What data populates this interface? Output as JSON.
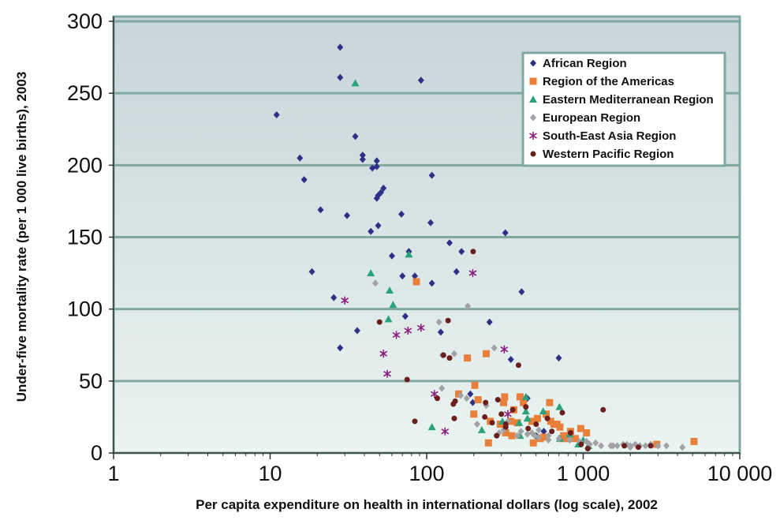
{
  "chart_data": {
    "type": "scatter",
    "xlabel": "Per capita expenditure on health in international dollars (log scale), 2002",
    "ylabel": "Under-five mortality rate (per 1 000 live births), 2003",
    "xscale": "log",
    "xlim": [
      1,
      10000
    ],
    "ylim": [
      0,
      300
    ],
    "x_ticks": [
      {
        "value": 1,
        "label": "1"
      },
      {
        "value": 10,
        "label": "10"
      },
      {
        "value": 100,
        "label": "100"
      },
      {
        "value": 1000,
        "label": "1 000"
      },
      {
        "value": 10000,
        "label": "10 000"
      }
    ],
    "y_ticks": [
      {
        "value": 0,
        "label": "0"
      },
      {
        "value": 50,
        "label": "50"
      },
      {
        "value": 100,
        "label": "100"
      },
      {
        "value": 150,
        "label": "150"
      },
      {
        "value": 200,
        "label": "200"
      },
      {
        "value": 250,
        "label": "250"
      },
      {
        "value": 300,
        "label": "300"
      }
    ],
    "grid": "horizontal",
    "legend_position": "top-right",
    "series": [
      {
        "name": "African Region",
        "color": "#2e2f86",
        "marker": "diamond",
        "points": [
          [
            28,
            282
          ],
          [
            28,
            261
          ],
          [
            92,
            259
          ],
          [
            11,
            235
          ],
          [
            35,
            220
          ],
          [
            39,
            207
          ],
          [
            39,
            204
          ],
          [
            15.5,
            205
          ],
          [
            48,
            203
          ],
          [
            48,
            199
          ],
          [
            45,
            198
          ],
          [
            108,
            193
          ],
          [
            16.5,
            190
          ],
          [
            53,
            184
          ],
          [
            51,
            181
          ],
          [
            49,
            179
          ],
          [
            48,
            177
          ],
          [
            21,
            169
          ],
          [
            31,
            165
          ],
          [
            69,
            166
          ],
          [
            106,
            160
          ],
          [
            49,
            158
          ],
          [
            44,
            154
          ],
          [
            318,
            153
          ],
          [
            140,
            146
          ],
          [
            167,
            140
          ],
          [
            60,
            137
          ],
          [
            77,
            140
          ],
          [
            18.5,
            126
          ],
          [
            155,
            126
          ],
          [
            70,
            123
          ],
          [
            84,
            123
          ],
          [
            108,
            118
          ],
          [
            404,
            112
          ],
          [
            25.5,
            108
          ],
          [
            73,
            95
          ],
          [
            252,
            91
          ],
          [
            36,
            85
          ],
          [
            123,
            84
          ],
          [
            345,
            65
          ],
          [
            698,
            66
          ],
          [
            28,
            73
          ],
          [
            190,
            41
          ],
          [
            197,
            35
          ],
          [
            440,
            38
          ],
          [
            560,
            15
          ],
          [
            500,
            12
          ]
        ]
      },
      {
        "name": "Region of the Americas",
        "color": "#e8803a",
        "marker": "square",
        "points": [
          [
            86,
            119
          ],
          [
            240,
            69
          ],
          [
            182,
            66
          ],
          [
            203,
            47
          ],
          [
            160,
            41
          ],
          [
            315,
            39
          ],
          [
            395,
            39
          ],
          [
            213,
            37
          ],
          [
            310,
            35
          ],
          [
            415,
            35
          ],
          [
            610,
            35
          ],
          [
            360,
            30
          ],
          [
            580,
            27
          ],
          [
            200,
            27
          ],
          [
            470,
            22
          ],
          [
            510,
            24
          ],
          [
            255,
            22
          ],
          [
            380,
            21
          ],
          [
            345,
            22
          ],
          [
            620,
            22
          ],
          [
            295,
            20
          ],
          [
            650,
            20
          ],
          [
            680,
            20
          ],
          [
            710,
            18
          ],
          [
            830,
            15
          ],
          [
            965,
            17
          ],
          [
            1050,
            14
          ],
          [
            320,
            14
          ],
          [
            350,
            12
          ],
          [
            560,
            11
          ],
          [
            730,
            10
          ],
          [
            750,
            12
          ],
          [
            800,
            10
          ],
          [
            890,
            10
          ],
          [
            530,
            10
          ],
          [
            248,
            7
          ],
          [
            480,
            7
          ],
          [
            2950,
            6
          ],
          [
            5100,
            8
          ]
        ]
      },
      {
        "name": "Eastern Mediterranean Region",
        "color": "#2aa37c",
        "marker": "triangle",
        "points": [
          [
            35,
            257
          ],
          [
            77,
            138
          ],
          [
            44,
            125
          ],
          [
            58,
            113
          ],
          [
            61,
            103
          ],
          [
            57,
            93
          ],
          [
            430,
            39
          ],
          [
            430,
            29
          ],
          [
            555,
            29
          ],
          [
            705,
            32
          ],
          [
            305,
            22
          ],
          [
            390,
            21
          ],
          [
            440,
            24
          ],
          [
            225,
            16
          ],
          [
            108,
            18
          ],
          [
            820,
            13
          ],
          [
            710,
            10
          ],
          [
            1000,
            9
          ],
          [
            395,
            12
          ],
          [
            930,
            6
          ],
          [
            1080,
            5
          ]
        ]
      },
      {
        "name": "European Region",
        "color": "#a1a1a6",
        "marker": "diamond",
        "points": [
          [
            47,
            118
          ],
          [
            183,
            102
          ],
          [
            120,
            91
          ],
          [
            126,
            68
          ],
          [
            150,
            69
          ],
          [
            270,
            73
          ],
          [
            125,
            45
          ],
          [
            165,
            40
          ],
          [
            180,
            38
          ],
          [
            240,
            33
          ],
          [
            210,
            20
          ],
          [
            330,
            22
          ],
          [
            310,
            16
          ],
          [
            400,
            15
          ],
          [
            470,
            14
          ],
          [
            520,
            16
          ],
          [
            440,
            13
          ],
          [
            490,
            12
          ],
          [
            600,
            12
          ],
          [
            700,
            10
          ],
          [
            820,
            9
          ],
          [
            950,
            8
          ],
          [
            1050,
            8
          ],
          [
            1200,
            7
          ],
          [
            1300,
            5
          ],
          [
            1550,
            5
          ],
          [
            1650,
            5
          ],
          [
            1800,
            6
          ],
          [
            1900,
            6
          ],
          [
            2000,
            5
          ],
          [
            2150,
            6
          ],
          [
            2300,
            5
          ],
          [
            2500,
            5
          ],
          [
            2700,
            6
          ],
          [
            3000,
            5
          ],
          [
            3400,
            5
          ],
          [
            4300,
            4
          ],
          [
            2000,
            4
          ],
          [
            1500,
            5
          ],
          [
            1100,
            6
          ],
          [
            600,
            9
          ],
          [
            520,
            11
          ],
          [
            380,
            12
          ],
          [
            290,
            14
          ]
        ]
      },
      {
        "name": "South-East Asia Region",
        "color": "#8b1e7e",
        "marker": "asterisk",
        "points": [
          [
            197,
            125
          ],
          [
            30,
            106
          ],
          [
            92,
            87
          ],
          [
            76,
            85
          ],
          [
            64,
            82
          ],
          [
            313,
            72
          ],
          [
            53,
            69
          ],
          [
            56,
            55
          ],
          [
            112,
            41
          ],
          [
            131,
            15
          ],
          [
            330,
            27
          ]
        ]
      },
      {
        "name": "Western Pacific Region",
        "color": "#6b1e1e",
        "marker": "circle",
        "points": [
          [
            198,
            140
          ],
          [
            137,
            92
          ],
          [
            50,
            91
          ],
          [
            128,
            68
          ],
          [
            140,
            66
          ],
          [
            386,
            61
          ],
          [
            75,
            51
          ],
          [
            238,
            35
          ],
          [
            117,
            38
          ],
          [
            152,
            36
          ],
          [
            148,
            34
          ],
          [
            285,
            37
          ],
          [
            84,
            22
          ],
          [
            150,
            24
          ],
          [
            235,
            25
          ],
          [
            300,
            27
          ],
          [
            355,
            30
          ],
          [
            262,
            21
          ],
          [
            320,
            18
          ],
          [
            735,
            28
          ],
          [
            430,
            32
          ],
          [
            590,
            24
          ],
          [
            1340,
            30
          ],
          [
            630,
            15
          ],
          [
            830,
            14
          ],
          [
            320,
            20
          ],
          [
            280,
            12
          ],
          [
            445,
            17
          ],
          [
            500,
            20
          ],
          [
            970,
            6
          ],
          [
            1070,
            3
          ],
          [
            1830,
            5
          ],
          [
            2250,
            4
          ],
          [
            2700,
            5
          ]
        ]
      }
    ]
  }
}
